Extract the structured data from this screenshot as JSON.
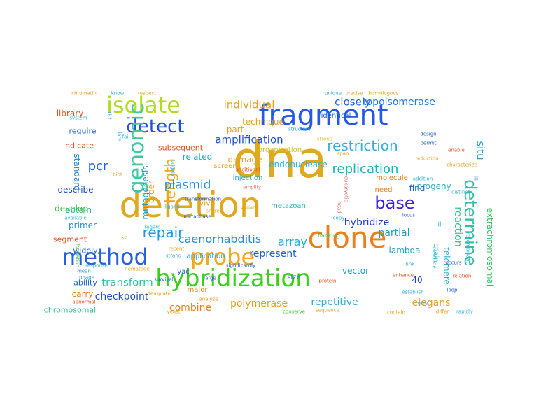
{
  "words": [
    {
      "text": "dna",
      "color": "#e0a81c"
    },
    {
      "text": "deletion",
      "color": "#e0a81c"
    },
    {
      "text": "fragment",
      "color": "#2458e8"
    },
    {
      "text": "clone",
      "color": "#e8801c"
    },
    {
      "text": "hybridization",
      "color": "#3cd01c"
    },
    {
      "text": "method",
      "color": "#2460e0"
    },
    {
      "text": "isolate",
      "color": "#b0dc1c"
    },
    {
      "text": "probe",
      "color": "#f0a81c"
    },
    {
      "text": "detect",
      "color": "#2050e0"
    },
    {
      "text": "genomic",
      "color": "#40c8a0"
    },
    {
      "text": "restriction",
      "color": "#30b0e0"
    },
    {
      "text": "base",
      "color": "#3820d8"
    },
    {
      "text": "repair",
      "color": "#2098e0"
    },
    {
      "text": "length",
      "color": "#f0a81c"
    },
    {
      "text": "determine",
      "color": "#30c0a0"
    },
    {
      "text": "pcr",
      "color": "#2060e0"
    },
    {
      "text": "replication",
      "color": "#1cb0c0"
    },
    {
      "text": "plasmid",
      "color": "#2c8ce0"
    },
    {
      "text": "caenorhabditis",
      "color": "#2090e0"
    },
    {
      "text": "array",
      "color": "#20b0e0"
    },
    {
      "text": "individual",
      "color": "#e8a020"
    },
    {
      "text": "closely",
      "color": "#2060d0"
    },
    {
      "text": "topoisomerase",
      "color": "#2078e0"
    },
    {
      "text": "amplification",
      "color": "#2050d0"
    },
    {
      "text": "situ",
      "color": "#20a0c8"
    },
    {
      "text": "transform",
      "color": "#30c0a0"
    },
    {
      "text": "checkpoint",
      "color": "#2050c8"
    },
    {
      "text": "represent",
      "color": "#2060c8"
    },
    {
      "text": "reaction",
      "color": "#30c890"
    },
    {
      "text": "partial",
      "color": "#20a0b0"
    },
    {
      "text": "hybridize",
      "color": "#1c40c8"
    },
    {
      "text": "elegans",
      "color": "#e8a020"
    },
    {
      "text": "polymerase",
      "color": "#e8a020"
    },
    {
      "text": "repetitive",
      "color": "#30b0d0"
    },
    {
      "text": "combine",
      "color": "#e8801c"
    },
    {
      "text": "extrachromosomal",
      "color": "#30c060"
    },
    {
      "text": "telomere",
      "color": "#20b0d0"
    },
    {
      "text": "library",
      "color": "#e85020"
    },
    {
      "text": "standard",
      "color": "#2080c8"
    },
    {
      "text": "mutagenesis",
      "color": "#20a0c0"
    },
    {
      "text": "order",
      "color": "#e8a020"
    },
    {
      "text": "related",
      "color": "#20a8c0"
    },
    {
      "text": "damage",
      "color": "#e8a020"
    },
    {
      "text": "technique",
      "color": "#e8a020"
    },
    {
      "text": "part",
      "color": "#e8a020"
    },
    {
      "text": "endonuclease",
      "color": "#30b0e0"
    },
    {
      "text": "find",
      "color": "#2060c8"
    },
    {
      "text": "progeny",
      "color": "#30b0c8"
    },
    {
      "text": "vector",
      "color": "#20a0c8"
    },
    {
      "text": "lambda",
      "color": "#20a0c8"
    },
    {
      "text": "40",
      "color": "#1c40c8"
    },
    {
      "text": "chain",
      "color": "#30b0c8"
    },
    {
      "text": "primer",
      "color": "#2090e0"
    },
    {
      "text": "obtain",
      "color": "#30b0a0"
    },
    {
      "text": "describe",
      "color": "#2050c8"
    },
    {
      "text": "develop",
      "color": "#40c040"
    },
    {
      "text": "require",
      "color": "#2060c8"
    },
    {
      "text": "indicate",
      "color": "#e8501c"
    },
    {
      "text": "subsequent",
      "color": "#e8501c"
    },
    {
      "text": "segment",
      "color": "#e8501c"
    },
    {
      "text": "widely",
      "color": "#2060c8"
    },
    {
      "text": "ability",
      "color": "#2060c8"
    },
    {
      "text": "carry",
      "color": "#e8801c"
    },
    {
      "text": "chromosomal",
      "color": "#30c090"
    },
    {
      "text": "vivo",
      "color": "#e8a020"
    },
    {
      "text": "injection",
      "color": "#30a0c0"
    },
    {
      "text": "screen",
      "color": "#e8a020"
    },
    {
      "text": "organization",
      "color": "#d0c020"
    },
    {
      "text": "identical",
      "color": "#2060c8"
    },
    {
      "text": "need",
      "color": "#e8801c"
    },
    {
      "text": "molecule",
      "color": "#e8801c"
    },
    {
      "text": "metazoan",
      "color": "#30b0c0"
    },
    {
      "text": "application",
      "color": "#30a0e0"
    },
    {
      "text": "yac",
      "color": "#2060c8"
    },
    {
      "text": "major",
      "color": "#e8801c"
    },
    {
      "text": "size",
      "color": "#2060c8"
    },
    {
      "text": "amplify",
      "color": "#e87070"
    },
    {
      "text": "transformation",
      "color": "#2060c8"
    },
    {
      "text": "significantly",
      "color": "#2060c8"
    },
    {
      "text": "flanking",
      "color": "#40c040"
    },
    {
      "text": "structure",
      "color": "#30a0e0"
    },
    {
      "text": "eukaryotic",
      "color": "#e87070"
    },
    {
      "text": "protein",
      "color": "#e85020"
    },
    {
      "text": "il",
      "color": "#30b0c0"
    },
    {
      "text": "ligand",
      "color": "#30b0e0"
    },
    {
      "text": "nematode",
      "color": "#e8a020"
    },
    {
      "text": "strand",
      "color": "#30b0e0"
    },
    {
      "text": "recent",
      "color": "#e8a020"
    },
    {
      "text": "phage",
      "color": "#30a0c0"
    },
    {
      "text": "mean",
      "color": "#30a0c0"
    },
    {
      "text": "regard",
      "color": "#30b0e0"
    },
    {
      "text": "kb",
      "color": "#e8a020"
    },
    {
      "text": "large",
      "color": "#2060c8"
    },
    {
      "text": "analyze",
      "color": "#e8a020"
    },
    {
      "text": "yeast",
      "color": "#e8a020"
    },
    {
      "text": "conserve",
      "color": "#40c040"
    },
    {
      "text": "contain",
      "color": "#e8a020"
    },
    {
      "text": "differ",
      "color": "#e8a020"
    },
    {
      "text": "rapidly",
      "color": "#30b0e0"
    },
    {
      "text": "give",
      "color": "#30b0e0"
    },
    {
      "text": "loop",
      "color": "#2060c8"
    },
    {
      "text": "occurs",
      "color": "#2060c8"
    },
    {
      "text": "relation",
      "color": "#e85020"
    },
    {
      "text": "design",
      "color": "#2060c8"
    },
    {
      "text": "permit",
      "color": "#2060c8"
    },
    {
      "text": "enable",
      "color": "#e85020"
    },
    {
      "text": "reduction",
      "color": "#e8a020"
    },
    {
      "text": "characterize",
      "color": "#e8a020"
    },
    {
      "text": "distinct",
      "color": "#30b0e0"
    },
    {
      "text": "addition",
      "color": "#30b0e0"
    },
    {
      "text": "chromatin",
      "color": "#e8a020"
    },
    {
      "text": "know",
      "color": "#30b0e0"
    },
    {
      "text": "respect",
      "color": "#e8a020"
    },
    {
      "text": "system",
      "color": "#30b0e0"
    },
    {
      "text": "unique",
      "color": "#30b0e0"
    },
    {
      "text": "precise",
      "color": "#e8a020"
    },
    {
      "text": "homologous",
      "color": "#e8a020"
    },
    {
      "text": "rich",
      "color": "#30b0e0"
    },
    {
      "text": "strong",
      "color": "#e8c040"
    },
    {
      "text": "span",
      "color": "#e8a020"
    },
    {
      "text": "additional",
      "color": "#e85020"
    },
    {
      "text": "variant",
      "color": "#e8a020"
    },
    {
      "text": "snare",
      "color": "#e8a020"
    },
    {
      "text": "survival",
      "color": "#2060c8"
    },
    {
      "text": "response",
      "color": "#30b0e0"
    },
    {
      "text": "formation",
      "color": "#40c040"
    },
    {
      "text": "largely",
      "color": "#30b0e0"
    },
    {
      "text": "biot",
      "color": "#e8a020"
    },
    {
      "text": "head",
      "color": "#e87070"
    },
    {
      "text": "locus",
      "color": "#2060c8"
    },
    {
      "text": "enhance",
      "color": "#e85020"
    },
    {
      "text": "establish",
      "color": "#30b0e0"
    },
    {
      "text": "recombinant",
      "color": "#30b0e0"
    },
    {
      "text": "conclude",
      "color": "#30b0e0"
    },
    {
      "text": "link",
      "color": "#30b0e0"
    },
    {
      "text": "copy",
      "color": "#30b0e0"
    },
    {
      "text": "late",
      "color": "#30b0e0"
    },
    {
      "text": "fail",
      "color": "#30b0e0"
    },
    {
      "text": "iii",
      "color": "#2060c8"
    },
    {
      "text": "metaphase",
      "color": "#2060c8"
    },
    {
      "text": "template",
      "color": "#e8a020"
    },
    {
      "text": "abnormal",
      "color": "#e85020"
    },
    {
      "text": "sequence",
      "color": "#e8a020"
    },
    {
      "text": "available",
      "color": "#30b0e0"
    }
  ]
}
